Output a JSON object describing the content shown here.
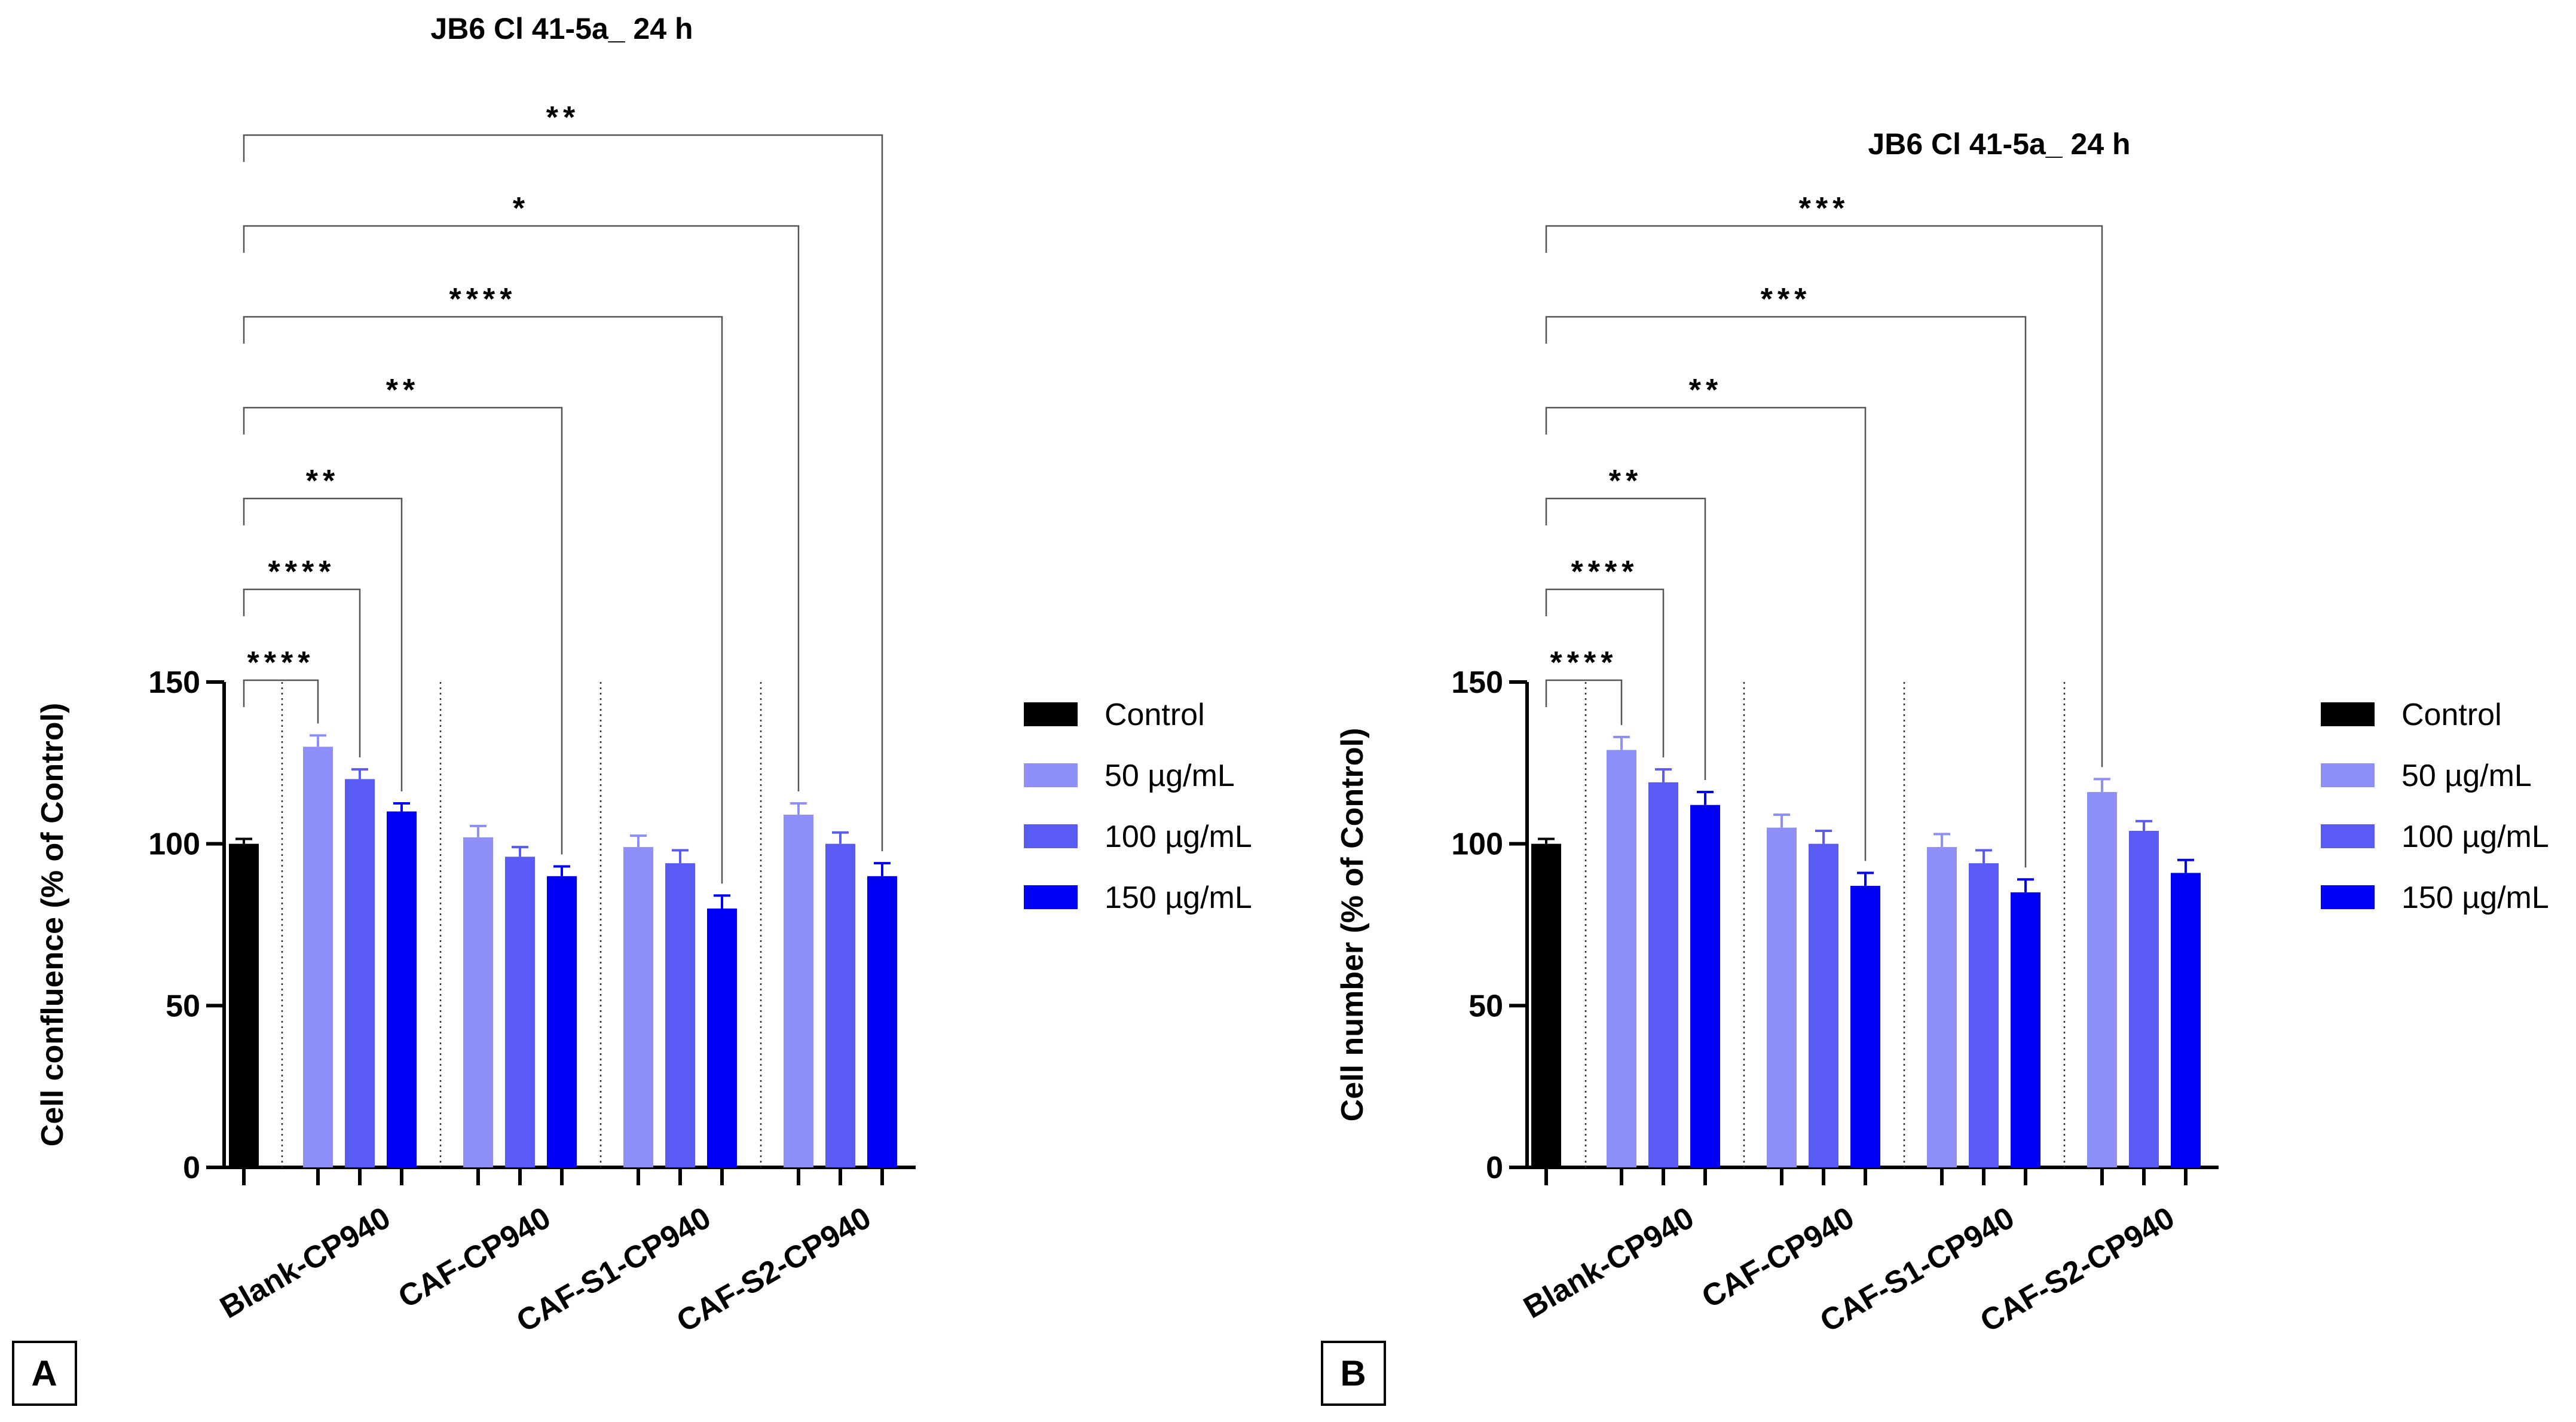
{
  "colors": {
    "Control": "#000000",
    "50 µg/mL": "#8f8ffa",
    "100 µg/mL": "#5a5af5",
    "150 µg/mL": "#0000f5"
  },
  "chart_data": [
    {
      "panel_label": "A",
      "type": "bar",
      "title": "JB6 Cl 41-5a_ 24 h",
      "ylabel": "Cell confluence (% of Control)",
      "xlabel": "",
      "ylim": [
        0,
        150
      ],
      "yticks": [
        0,
        50,
        100,
        150
      ],
      "legend_position": "right",
      "legend": [
        "Control",
        "50 µg/mL",
        "100 µg/mL",
        "150 µg/mL"
      ],
      "control": {
        "name": "Control",
        "value": 100,
        "error": 1.5
      },
      "categories": [
        "Blank-CP940",
        "CAF-CP940",
        "CAF-S1-CP940",
        "CAF-S2-CP940"
      ],
      "series": [
        {
          "name": "50 µg/mL",
          "values": [
            130,
            102,
            99,
            109
          ],
          "errors": [
            3.5,
            3.5,
            3.5,
            3.5
          ]
        },
        {
          "name": "100 µg/mL",
          "values": [
            120,
            96,
            94,
            100
          ],
          "errors": [
            3,
            3,
            4,
            3.5
          ]
        },
        {
          "name": "150 µg/mL",
          "values": [
            110,
            90,
            80,
            90
          ],
          "errors": [
            2.5,
            3,
            4,
            4
          ]
        }
      ],
      "significance": [
        {
          "category": 0,
          "series": 0,
          "label": "****"
        },
        {
          "category": 0,
          "series": 1,
          "label": "****"
        },
        {
          "category": 0,
          "series": 2,
          "label": "**"
        },
        {
          "category": 1,
          "series": 2,
          "label": "**"
        },
        {
          "category": 2,
          "series": 2,
          "label": "****"
        },
        {
          "category": 3,
          "series": 0,
          "label": "*"
        },
        {
          "category": 3,
          "series": 2,
          "label": "**"
        }
      ]
    },
    {
      "panel_label": "B",
      "type": "bar",
      "title": "JB6 Cl 41-5a_ 24 h",
      "ylabel": "Cell number (% of Control)",
      "xlabel": "",
      "ylim": [
        0,
        150
      ],
      "yticks": [
        0,
        50,
        100,
        150
      ],
      "legend_position": "right",
      "legend": [
        "Control",
        "50 µg/mL",
        "100 µg/mL",
        "150 µg/mL"
      ],
      "control": {
        "name": "Control",
        "value": 100,
        "error": 1.5
      },
      "categories": [
        "Blank-CP940",
        "CAF-CP940",
        "CAF-S1-CP940",
        "CAF-S2-CP940"
      ],
      "series": [
        {
          "name": "50 µg/mL",
          "values": [
            129,
            105,
            99,
            116
          ],
          "errors": [
            4,
            4,
            4,
            4
          ]
        },
        {
          "name": "100 µg/mL",
          "values": [
            119,
            100,
            94,
            104
          ],
          "errors": [
            4,
            4,
            4,
            3
          ]
        },
        {
          "name": "150 µg/mL",
          "values": [
            112,
            87,
            85,
            91
          ],
          "errors": [
            4,
            4,
            4,
            4
          ]
        }
      ],
      "significance": [
        {
          "category": 0,
          "series": 0,
          "label": "****"
        },
        {
          "category": 0,
          "series": 1,
          "label": "****"
        },
        {
          "category": 0,
          "series": 2,
          "label": "**"
        },
        {
          "category": 1,
          "series": 2,
          "label": "**"
        },
        {
          "category": 2,
          "series": 2,
          "label": "***"
        },
        {
          "category": 3,
          "series": 0,
          "label": "***"
        }
      ]
    }
  ]
}
